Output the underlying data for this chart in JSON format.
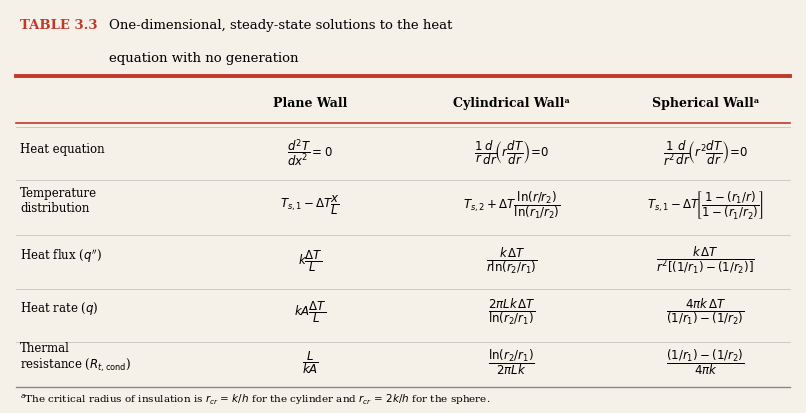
{
  "title_prefix": "TABLE 3.3",
  "title_color": "#c0392b",
  "col_headers": [
    "",
    "Plane Wall",
    "Cylindrical Wallᵃ",
    "Spherical Wallᵃ"
  ],
  "bg_color": "#f5f0e8",
  "header_line_color": "#c0392b",
  "divider_color": "#888888"
}
